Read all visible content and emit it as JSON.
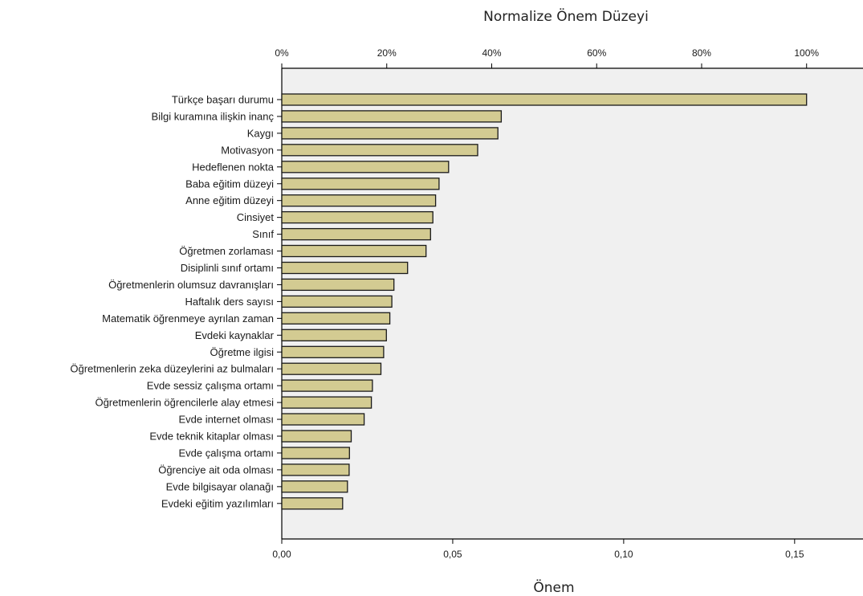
{
  "chart_data": {
    "type": "bar",
    "orientation": "horizontal",
    "title": "Normalize Önem Düzeyi",
    "xlabel": "Önem",
    "top_axis_ticks": [
      "0%",
      "20%",
      "40%",
      "60%",
      "80%",
      "100%"
    ],
    "bottom_axis_ticks": [
      "0,00",
      "0,05",
      "0,10",
      "0,15"
    ],
    "bottom_tick_values": [
      0,
      0.05,
      0.1,
      0.15
    ],
    "xlim": [
      0,
      0.17
    ],
    "grid": false,
    "categories": [
      "Türkçe başarı durumu",
      "Bilgi kuramına ilişkin inanç",
      "Kaygı",
      "Motivasyon",
      "Hedeflenen nokta",
      "Baba eğitim düzeyi",
      "Anne eğitim düzeyi",
      "Cinsiyet",
      "Sınıf",
      "Öğretmen zorlaması",
      "Disiplinli sınıf ortamı",
      "Öğretmenlerin olumsuz davranışları",
      "Haftalık ders sayısı",
      "Matematik öğrenmeye ayrılan zaman",
      "Evdeki kaynaklar",
      "Öğretme ilgisi",
      "Öğretmenlerin zeka düzeylerini az bulmaları",
      "Evde sessiz çalışma ortamı",
      "Öğretmenlerin öğrencilerle alay etmesi",
      "Evde internet olması",
      "Evde teknik kitaplar olması",
      "Evde çalışma ortamı",
      "Öğrenciye ait oda olması",
      "Evde bilgisayar olanağı",
      "Evdeki eğitim yazılımları"
    ],
    "values": [
      0.1535,
      0.0642,
      0.0632,
      0.0573,
      0.0488,
      0.046,
      0.045,
      0.0442,
      0.0435,
      0.0422,
      0.0368,
      0.0328,
      0.0322,
      0.0316,
      0.0306,
      0.0298,
      0.029,
      0.0265,
      0.0262,
      0.0241,
      0.0203,
      0.0198,
      0.0197,
      0.0192,
      0.0178
    ],
    "colors": {
      "bar_fill": "#D3CB92",
      "bar_stroke": "#1a1a1a",
      "plot_background": "#F0F0F0",
      "axis": "#000000"
    }
  }
}
